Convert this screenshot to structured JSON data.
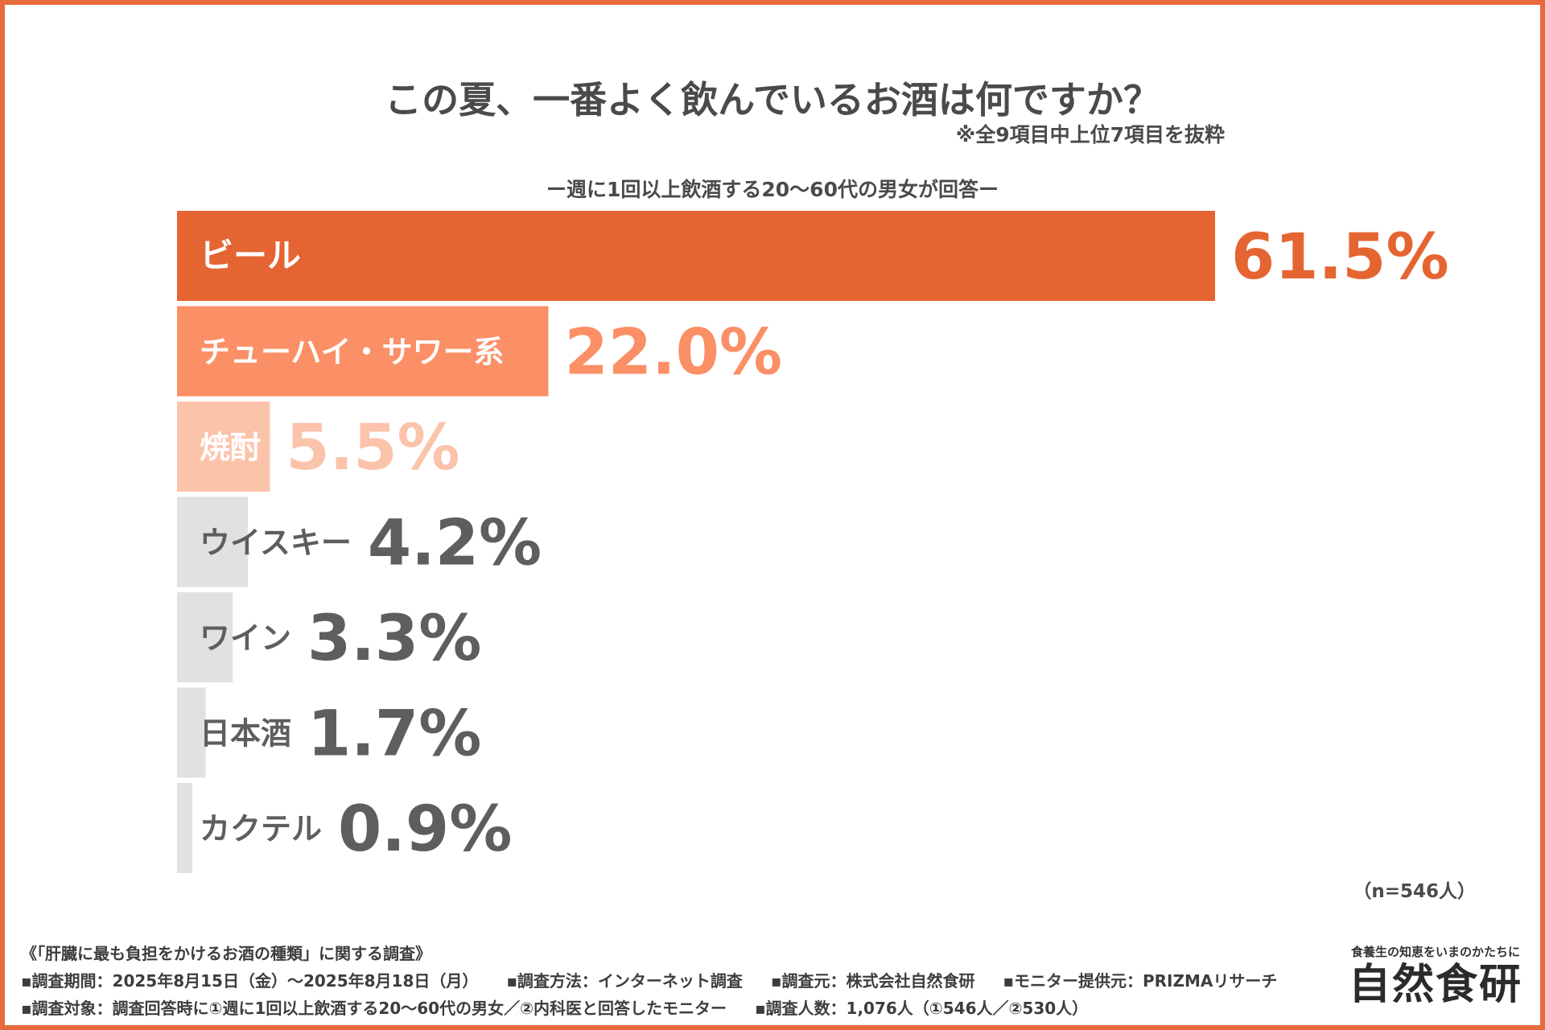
{
  "title": "この夏、一番よく飲んでいるお酒は何ですか？",
  "note": "※全9項目中上位7項目を抜粋",
  "subtitle": "ー週に1回以上飲酒する20〜60代の男女が回答ー",
  "sample_label": "（n=546人）",
  "chart_data": {
    "type": "bar",
    "orientation": "horizontal",
    "title": "この夏、一番よく飲んでいるお酒は何ですか？",
    "categories": [
      "ビール",
      "チューハイ・サワー系",
      "焼酎",
      "ウイスキー",
      "ワイン",
      "日本酒",
      "カクテル"
    ],
    "values": [
      61.5,
      22.0,
      5.5,
      4.2,
      3.3,
      1.7,
      0.9
    ],
    "value_labels": [
      "61.5%",
      "22.0%",
      "5.5%",
      "4.2%",
      "3.3%",
      "1.7%",
      "0.9%"
    ],
    "unit": "%",
    "bar_colors": [
      "#e56532",
      "#fb8f66",
      "#fcc3ab",
      "#e1e1e1",
      "#e1e1e1",
      "#e1e1e1",
      "#e1e1e1"
    ],
    "value_colors": [
      "#e56532",
      "#fb8f66",
      "#fcc3ab",
      "#5e5e5e",
      "#5e5e5e",
      "#5e5e5e",
      "#5e5e5e"
    ],
    "label_colors": [
      "#ffffff",
      "#ffffff",
      "#ffffff",
      "#5e5e5e",
      "#5e5e5e",
      "#5e5e5e",
      "#5e5e5e"
    ],
    "grid": false,
    "legend": "none"
  },
  "footer": {
    "survey_title": "《「肝臓に最も負担をかけるお酒の種類」に関する調査》",
    "period": "▪調査期間：2025年8月15日（金）〜2025年8月18日（月）",
    "method": "▪調査方法：インターネット調査",
    "conductor": "▪調査元：株式会社自然食研",
    "provider": "▪モニター提供元：PRIZMAリサーチ",
    "target": "▪調査対象：調査回答時に①週に1回以上飲酒する20〜60代の男女／②内科医と回答したモニター",
    "count": "▪調査人数：1,076人（①546人／②530人）"
  },
  "brand": {
    "tagline": "食養生の知恵をいまのかたちに",
    "logo": "自然食研"
  },
  "colors": {
    "frame": "#e66a3a",
    "accent": "#e56532"
  }
}
